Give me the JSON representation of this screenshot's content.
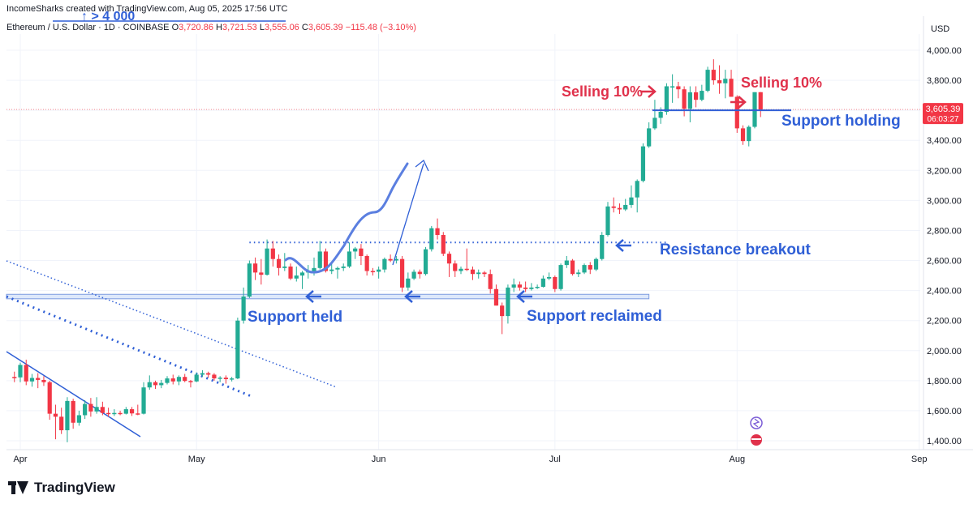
{
  "header": {
    "credit": "IncomeSharks created with TradingView.com, Aug 05, 2025 17:56 UTC",
    "symbol": "Ethereum / U.S. Dollar · 1D · COINBASE",
    "o_label": "O",
    "o_value": "3,720.86",
    "h_label": "H",
    "h_value": "3,721.53",
    "l_label": "L",
    "l_value": "3,555.06",
    "c_label": "C",
    "c_value": "3,605.39",
    "change": "−115.48 (−3.10%)",
    "currency": "USD"
  },
  "price_tag": {
    "price": "3,605.39",
    "countdown": "06:03:27"
  },
  "brand": "TradingView",
  "colors": {
    "up": "#22ab94",
    "down": "#f23645",
    "annotation_blue": "#2f5fd6",
    "annotation_red": "#e0314b"
  },
  "chart_data": {
    "type": "candlestick",
    "title": "",
    "ylabel": "USD",
    "ylim": [
      1340,
      4100
    ],
    "yticks": [
      "4,000.00",
      "3,800.00",
      "3,600.00",
      "3,400.00",
      "3,200.00",
      "3,000.00",
      "2,800.00",
      "2,600.00",
      "2,400.00",
      "2,200.00",
      "2,000.00",
      "1,800.00",
      "1,600.00",
      "1,400.00"
    ],
    "ytick_values": [
      4000,
      3800,
      3600,
      3400,
      3200,
      3000,
      2800,
      2600,
      2400,
      2200,
      2000,
      1800,
      1600,
      1400
    ],
    "xticks": [
      {
        "label": "Apr",
        "date": "2025-04-01"
      },
      {
        "label": "May",
        "date": "2025-05-01"
      },
      {
        "label": "Jun",
        "date": "2025-06-01"
      },
      {
        "label": "Jul",
        "date": "2025-07-01"
      },
      {
        "label": "Aug",
        "date": "2025-08-01"
      },
      {
        "label": "Sep",
        "date": "2025-09-01"
      }
    ],
    "candles": [
      {
        "d": "2025-03-31",
        "o": 1825,
        "h": 1860,
        "l": 1790,
        "c": 1822
      },
      {
        "d": "2025-04-01",
        "o": 1822,
        "h": 1920,
        "l": 1790,
        "c": 1905
      },
      {
        "d": "2025-04-02",
        "o": 1905,
        "h": 1940,
        "l": 1770,
        "c": 1795
      },
      {
        "d": "2025-04-03",
        "o": 1795,
        "h": 1845,
        "l": 1760,
        "c": 1818
      },
      {
        "d": "2025-04-04",
        "o": 1818,
        "h": 1850,
        "l": 1750,
        "c": 1805
      },
      {
        "d": "2025-04-05",
        "o": 1805,
        "h": 1830,
        "l": 1765,
        "c": 1790
      },
      {
        "d": "2025-04-06",
        "o": 1790,
        "h": 1800,
        "l": 1540,
        "c": 1580
      },
      {
        "d": "2025-04-07",
        "o": 1580,
        "h": 1640,
        "l": 1410,
        "c": 1560
      },
      {
        "d": "2025-04-08",
        "o": 1560,
        "h": 1620,
        "l": 1445,
        "c": 1470
      },
      {
        "d": "2025-04-09",
        "o": 1470,
        "h": 1690,
        "l": 1390,
        "c": 1665
      },
      {
        "d": "2025-04-10",
        "o": 1665,
        "h": 1680,
        "l": 1480,
        "c": 1520
      },
      {
        "d": "2025-04-11",
        "o": 1520,
        "h": 1600,
        "l": 1500,
        "c": 1570
      },
      {
        "d": "2025-04-12",
        "o": 1570,
        "h": 1670,
        "l": 1545,
        "c": 1645
      },
      {
        "d": "2025-04-13",
        "o": 1645,
        "h": 1685,
        "l": 1560,
        "c": 1595
      },
      {
        "d": "2025-04-14",
        "o": 1595,
        "h": 1690,
        "l": 1580,
        "c": 1625
      },
      {
        "d": "2025-04-15",
        "o": 1625,
        "h": 1660,
        "l": 1570,
        "c": 1585
      },
      {
        "d": "2025-04-16",
        "o": 1585,
        "h": 1620,
        "l": 1560,
        "c": 1578
      },
      {
        "d": "2025-04-17",
        "o": 1578,
        "h": 1610,
        "l": 1565,
        "c": 1585
      },
      {
        "d": "2025-04-18",
        "o": 1585,
        "h": 1600,
        "l": 1570,
        "c": 1580
      },
      {
        "d": "2025-04-19",
        "o": 1580,
        "h": 1625,
        "l": 1575,
        "c": 1610
      },
      {
        "d": "2025-04-20",
        "o": 1610,
        "h": 1625,
        "l": 1565,
        "c": 1582
      },
      {
        "d": "2025-04-21",
        "o": 1582,
        "h": 1640,
        "l": 1570,
        "c": 1580
      },
      {
        "d": "2025-04-22",
        "o": 1580,
        "h": 1790,
        "l": 1575,
        "c": 1755
      },
      {
        "d": "2025-04-23",
        "o": 1755,
        "h": 1835,
        "l": 1740,
        "c": 1790
      },
      {
        "d": "2025-04-24",
        "o": 1790,
        "h": 1800,
        "l": 1745,
        "c": 1770
      },
      {
        "d": "2025-04-25",
        "o": 1770,
        "h": 1805,
        "l": 1750,
        "c": 1785
      },
      {
        "d": "2025-04-26",
        "o": 1785,
        "h": 1830,
        "l": 1775,
        "c": 1815
      },
      {
        "d": "2025-04-27",
        "o": 1815,
        "h": 1840,
        "l": 1775,
        "c": 1795
      },
      {
        "d": "2025-04-28",
        "o": 1795,
        "h": 1835,
        "l": 1770,
        "c": 1825
      },
      {
        "d": "2025-04-29",
        "o": 1825,
        "h": 1845,
        "l": 1790,
        "c": 1798
      },
      {
        "d": "2025-04-30",
        "o": 1798,
        "h": 1805,
        "l": 1755,
        "c": 1795
      },
      {
        "d": "2025-05-01",
        "o": 1795,
        "h": 1855,
        "l": 1790,
        "c": 1840
      },
      {
        "d": "2025-05-02",
        "o": 1840,
        "h": 1870,
        "l": 1825,
        "c": 1850
      },
      {
        "d": "2025-05-03",
        "o": 1850,
        "h": 1860,
        "l": 1820,
        "c": 1840
      },
      {
        "d": "2025-05-04",
        "o": 1840,
        "h": 1850,
        "l": 1800,
        "c": 1815
      },
      {
        "d": "2025-05-05",
        "o": 1815,
        "h": 1830,
        "l": 1790,
        "c": 1820
      },
      {
        "d": "2025-05-06",
        "o": 1820,
        "h": 1835,
        "l": 1780,
        "c": 1810
      },
      {
        "d": "2025-05-07",
        "o": 1810,
        "h": 1825,
        "l": 1795,
        "c": 1815
      },
      {
        "d": "2025-05-08",
        "o": 1815,
        "h": 2220,
        "l": 1810,
        "c": 2200
      },
      {
        "d": "2025-05-09",
        "o": 2200,
        "h": 2420,
        "l": 2180,
        "c": 2360
      },
      {
        "d": "2025-05-10",
        "o": 2360,
        "h": 2600,
        "l": 2350,
        "c": 2580
      },
      {
        "d": "2025-05-11",
        "o": 2580,
        "h": 2620,
        "l": 2470,
        "c": 2520
      },
      {
        "d": "2025-05-12",
        "o": 2520,
        "h": 2610,
        "l": 2440,
        "c": 2505
      },
      {
        "d": "2025-05-13",
        "o": 2505,
        "h": 2740,
        "l": 2500,
        "c": 2680
      },
      {
        "d": "2025-05-14",
        "o": 2680,
        "h": 2730,
        "l": 2560,
        "c": 2610
      },
      {
        "d": "2025-05-15",
        "o": 2610,
        "h": 2640,
        "l": 2500,
        "c": 2550
      },
      {
        "d": "2025-05-16",
        "o": 2550,
        "h": 2650,
        "l": 2530,
        "c": 2560
      },
      {
        "d": "2025-05-17",
        "o": 2560,
        "h": 2580,
        "l": 2470,
        "c": 2480
      },
      {
        "d": "2025-05-18",
        "o": 2480,
        "h": 2560,
        "l": 2460,
        "c": 2500
      },
      {
        "d": "2025-05-19",
        "o": 2500,
        "h": 2530,
        "l": 2410,
        "c": 2520
      },
      {
        "d": "2025-05-20",
        "o": 2520,
        "h": 2570,
        "l": 2480,
        "c": 2530
      },
      {
        "d": "2025-05-21",
        "o": 2530,
        "h": 2620,
        "l": 2500,
        "c": 2550
      },
      {
        "d": "2025-05-22",
        "o": 2550,
        "h": 2730,
        "l": 2540,
        "c": 2660
      },
      {
        "d": "2025-05-23",
        "o": 2660,
        "h": 2680,
        "l": 2520,
        "c": 2530
      },
      {
        "d": "2025-05-24",
        "o": 2530,
        "h": 2580,
        "l": 2510,
        "c": 2540
      },
      {
        "d": "2025-05-25",
        "o": 2540,
        "h": 2560,
        "l": 2480,
        "c": 2550
      },
      {
        "d": "2025-05-26",
        "o": 2550,
        "h": 2580,
        "l": 2530,
        "c": 2560
      },
      {
        "d": "2025-05-27",
        "o": 2560,
        "h": 2720,
        "l": 2550,
        "c": 2660
      },
      {
        "d": "2025-05-28",
        "o": 2660,
        "h": 2690,
        "l": 2610,
        "c": 2680
      },
      {
        "d": "2025-05-29",
        "o": 2680,
        "h": 2710,
        "l": 2570,
        "c": 2630
      },
      {
        "d": "2025-05-30",
        "o": 2630,
        "h": 2640,
        "l": 2500,
        "c": 2530
      },
      {
        "d": "2025-05-31",
        "o": 2530,
        "h": 2550,
        "l": 2500,
        "c": 2525
      },
      {
        "d": "2025-06-01",
        "o": 2525,
        "h": 2560,
        "l": 2480,
        "c": 2540
      },
      {
        "d": "2025-06-02",
        "o": 2540,
        "h": 2620,
        "l": 2520,
        "c": 2610
      },
      {
        "d": "2025-06-03",
        "o": 2610,
        "h": 2640,
        "l": 2590,
        "c": 2600
      },
      {
        "d": "2025-06-04",
        "o": 2600,
        "h": 2630,
        "l": 2580,
        "c": 2610
      },
      {
        "d": "2025-06-05",
        "o": 2610,
        "h": 2630,
        "l": 2390,
        "c": 2420
      },
      {
        "d": "2025-06-06",
        "o": 2420,
        "h": 2520,
        "l": 2400,
        "c": 2480
      },
      {
        "d": "2025-06-07",
        "o": 2480,
        "h": 2540,
        "l": 2470,
        "c": 2525
      },
      {
        "d": "2025-06-08",
        "o": 2525,
        "h": 2540,
        "l": 2480,
        "c": 2510
      },
      {
        "d": "2025-06-09",
        "o": 2510,
        "h": 2690,
        "l": 2500,
        "c": 2675
      },
      {
        "d": "2025-06-10",
        "o": 2675,
        "h": 2830,
        "l": 2660,
        "c": 2815
      },
      {
        "d": "2025-06-11",
        "o": 2815,
        "h": 2880,
        "l": 2740,
        "c": 2770
      },
      {
        "d": "2025-06-12",
        "o": 2770,
        "h": 2790,
        "l": 2630,
        "c": 2645
      },
      {
        "d": "2025-06-13",
        "o": 2645,
        "h": 2660,
        "l": 2490,
        "c": 2580
      },
      {
        "d": "2025-06-14",
        "o": 2580,
        "h": 2600,
        "l": 2490,
        "c": 2530
      },
      {
        "d": "2025-06-15",
        "o": 2530,
        "h": 2560,
        "l": 2510,
        "c": 2545
      },
      {
        "d": "2025-06-16",
        "o": 2545,
        "h": 2680,
        "l": 2530,
        "c": 2540
      },
      {
        "d": "2025-06-17",
        "o": 2540,
        "h": 2560,
        "l": 2470,
        "c": 2510
      },
      {
        "d": "2025-06-18",
        "o": 2510,
        "h": 2540,
        "l": 2480,
        "c": 2520
      },
      {
        "d": "2025-06-19",
        "o": 2520,
        "h": 2530,
        "l": 2490,
        "c": 2510
      },
      {
        "d": "2025-06-20",
        "o": 2510,
        "h": 2540,
        "l": 2380,
        "c": 2410
      },
      {
        "d": "2025-06-21",
        "o": 2410,
        "h": 2440,
        "l": 2300,
        "c": 2300
      },
      {
        "d": "2025-06-22",
        "o": 2300,
        "h": 2320,
        "l": 2110,
        "c": 2230
      },
      {
        "d": "2025-06-23",
        "o": 2230,
        "h": 2440,
        "l": 2180,
        "c": 2420
      },
      {
        "d": "2025-06-24",
        "o": 2420,
        "h": 2480,
        "l": 2390,
        "c": 2440
      },
      {
        "d": "2025-06-25",
        "o": 2440,
        "h": 2460,
        "l": 2400,
        "c": 2420
      },
      {
        "d": "2025-06-26",
        "o": 2420,
        "h": 2460,
        "l": 2390,
        "c": 2410
      },
      {
        "d": "2025-06-27",
        "o": 2410,
        "h": 2450,
        "l": 2400,
        "c": 2420
      },
      {
        "d": "2025-06-28",
        "o": 2420,
        "h": 2440,
        "l": 2410,
        "c": 2425
      },
      {
        "d": "2025-06-29",
        "o": 2425,
        "h": 2500,
        "l": 2420,
        "c": 2480
      },
      {
        "d": "2025-06-30",
        "o": 2480,
        "h": 2520,
        "l": 2470,
        "c": 2490
      },
      {
        "d": "2025-07-01",
        "o": 2490,
        "h": 2500,
        "l": 2390,
        "c": 2410
      },
      {
        "d": "2025-07-02",
        "o": 2410,
        "h": 2580,
        "l": 2400,
        "c": 2570
      },
      {
        "d": "2025-07-03",
        "o": 2570,
        "h": 2630,
        "l": 2550,
        "c": 2600
      },
      {
        "d": "2025-07-04",
        "o": 2600,
        "h": 2610,
        "l": 2500,
        "c": 2510
      },
      {
        "d": "2025-07-05",
        "o": 2510,
        "h": 2540,
        "l": 2490,
        "c": 2520
      },
      {
        "d": "2025-07-06",
        "o": 2520,
        "h": 2580,
        "l": 2510,
        "c": 2570
      },
      {
        "d": "2025-07-07",
        "o": 2570,
        "h": 2590,
        "l": 2510,
        "c": 2540
      },
      {
        "d": "2025-07-08",
        "o": 2540,
        "h": 2620,
        "l": 2530,
        "c": 2610
      },
      {
        "d": "2025-07-09",
        "o": 2610,
        "h": 2790,
        "l": 2600,
        "c": 2770
      },
      {
        "d": "2025-07-10",
        "o": 2770,
        "h": 2990,
        "l": 2760,
        "c": 2960
      },
      {
        "d": "2025-07-11",
        "o": 2960,
        "h": 3020,
        "l": 2920,
        "c": 2950
      },
      {
        "d": "2025-07-12",
        "o": 2950,
        "h": 2980,
        "l": 2910,
        "c": 2940
      },
      {
        "d": "2025-07-13",
        "o": 2940,
        "h": 3010,
        "l": 2930,
        "c": 2970
      },
      {
        "d": "2025-07-14",
        "o": 2970,
        "h": 3100,
        "l": 2950,
        "c": 3020
      },
      {
        "d": "2025-07-15",
        "o": 3020,
        "h": 3140,
        "l": 2920,
        "c": 3130
      },
      {
        "d": "2025-07-16",
        "o": 3130,
        "h": 3380,
        "l": 3120,
        "c": 3360
      },
      {
        "d": "2025-07-17",
        "o": 3360,
        "h": 3520,
        "l": 3350,
        "c": 3480
      },
      {
        "d": "2025-07-18",
        "o": 3480,
        "h": 3670,
        "l": 3470,
        "c": 3550
      },
      {
        "d": "2025-07-19",
        "o": 3550,
        "h": 3620,
        "l": 3510,
        "c": 3590
      },
      {
        "d": "2025-07-20",
        "o": 3590,
        "h": 3780,
        "l": 3570,
        "c": 3760
      },
      {
        "d": "2025-07-21",
        "o": 3760,
        "h": 3840,
        "l": 3650,
        "c": 3760
      },
      {
        "d": "2025-07-22",
        "o": 3760,
        "h": 3790,
        "l": 3680,
        "c": 3740
      },
      {
        "d": "2025-07-23",
        "o": 3740,
        "h": 3760,
        "l": 3560,
        "c": 3610
      },
      {
        "d": "2025-07-24",
        "o": 3610,
        "h": 3760,
        "l": 3520,
        "c": 3720
      },
      {
        "d": "2025-07-25",
        "o": 3720,
        "h": 3760,
        "l": 3620,
        "c": 3670
      },
      {
        "d": "2025-07-26",
        "o": 3670,
        "h": 3770,
        "l": 3660,
        "c": 3730
      },
      {
        "d": "2025-07-27",
        "o": 3730,
        "h": 3890,
        "l": 3720,
        "c": 3870
      },
      {
        "d": "2025-07-28",
        "o": 3870,
        "h": 3940,
        "l": 3770,
        "c": 3800
      },
      {
        "d": "2025-07-29",
        "o": 3800,
        "h": 3900,
        "l": 3710,
        "c": 3780
      },
      {
        "d": "2025-07-30",
        "o": 3780,
        "h": 3870,
        "l": 3680,
        "c": 3810
      },
      {
        "d": "2025-07-31",
        "o": 3810,
        "h": 3870,
        "l": 3690,
        "c": 3690
      },
      {
        "d": "2025-08-01",
        "o": 3690,
        "h": 3700,
        "l": 3450,
        "c": 3480
      },
      {
        "d": "2025-08-02",
        "o": 3480,
        "h": 3500,
        "l": 3370,
        "c": 3395
      },
      {
        "d": "2025-08-03",
        "o": 3395,
        "h": 3500,
        "l": 3360,
        "c": 3490
      },
      {
        "d": "2025-08-04",
        "o": 3490,
        "h": 3720,
        "l": 3480,
        "c": 3721
      },
      {
        "d": "2025-08-05",
        "o": 3720.86,
        "h": 3721.53,
        "l": 3555.06,
        "c": 3605.39
      }
    ],
    "horizontal_levels": [
      {
        "name": "resistance_dotted",
        "value": 2720
      },
      {
        "name": "support_band_top",
        "value": 2375
      },
      {
        "name": "support_band_bottom",
        "value": 2345
      },
      {
        "name": "support_holding",
        "value": 3600
      },
      {
        "name": "current_price",
        "value": 3605.39
      }
    ],
    "annotations": {
      "selling_1": "Selling 10%",
      "selling_2": "Selling 10%",
      "support_holding": "Support holding",
      "resistance_breakout": "Resistance breakout",
      "support_held": "Support held",
      "support_reclaimed": "Support reclaimed",
      "top_cut_label": "↑ > 4 000"
    }
  }
}
